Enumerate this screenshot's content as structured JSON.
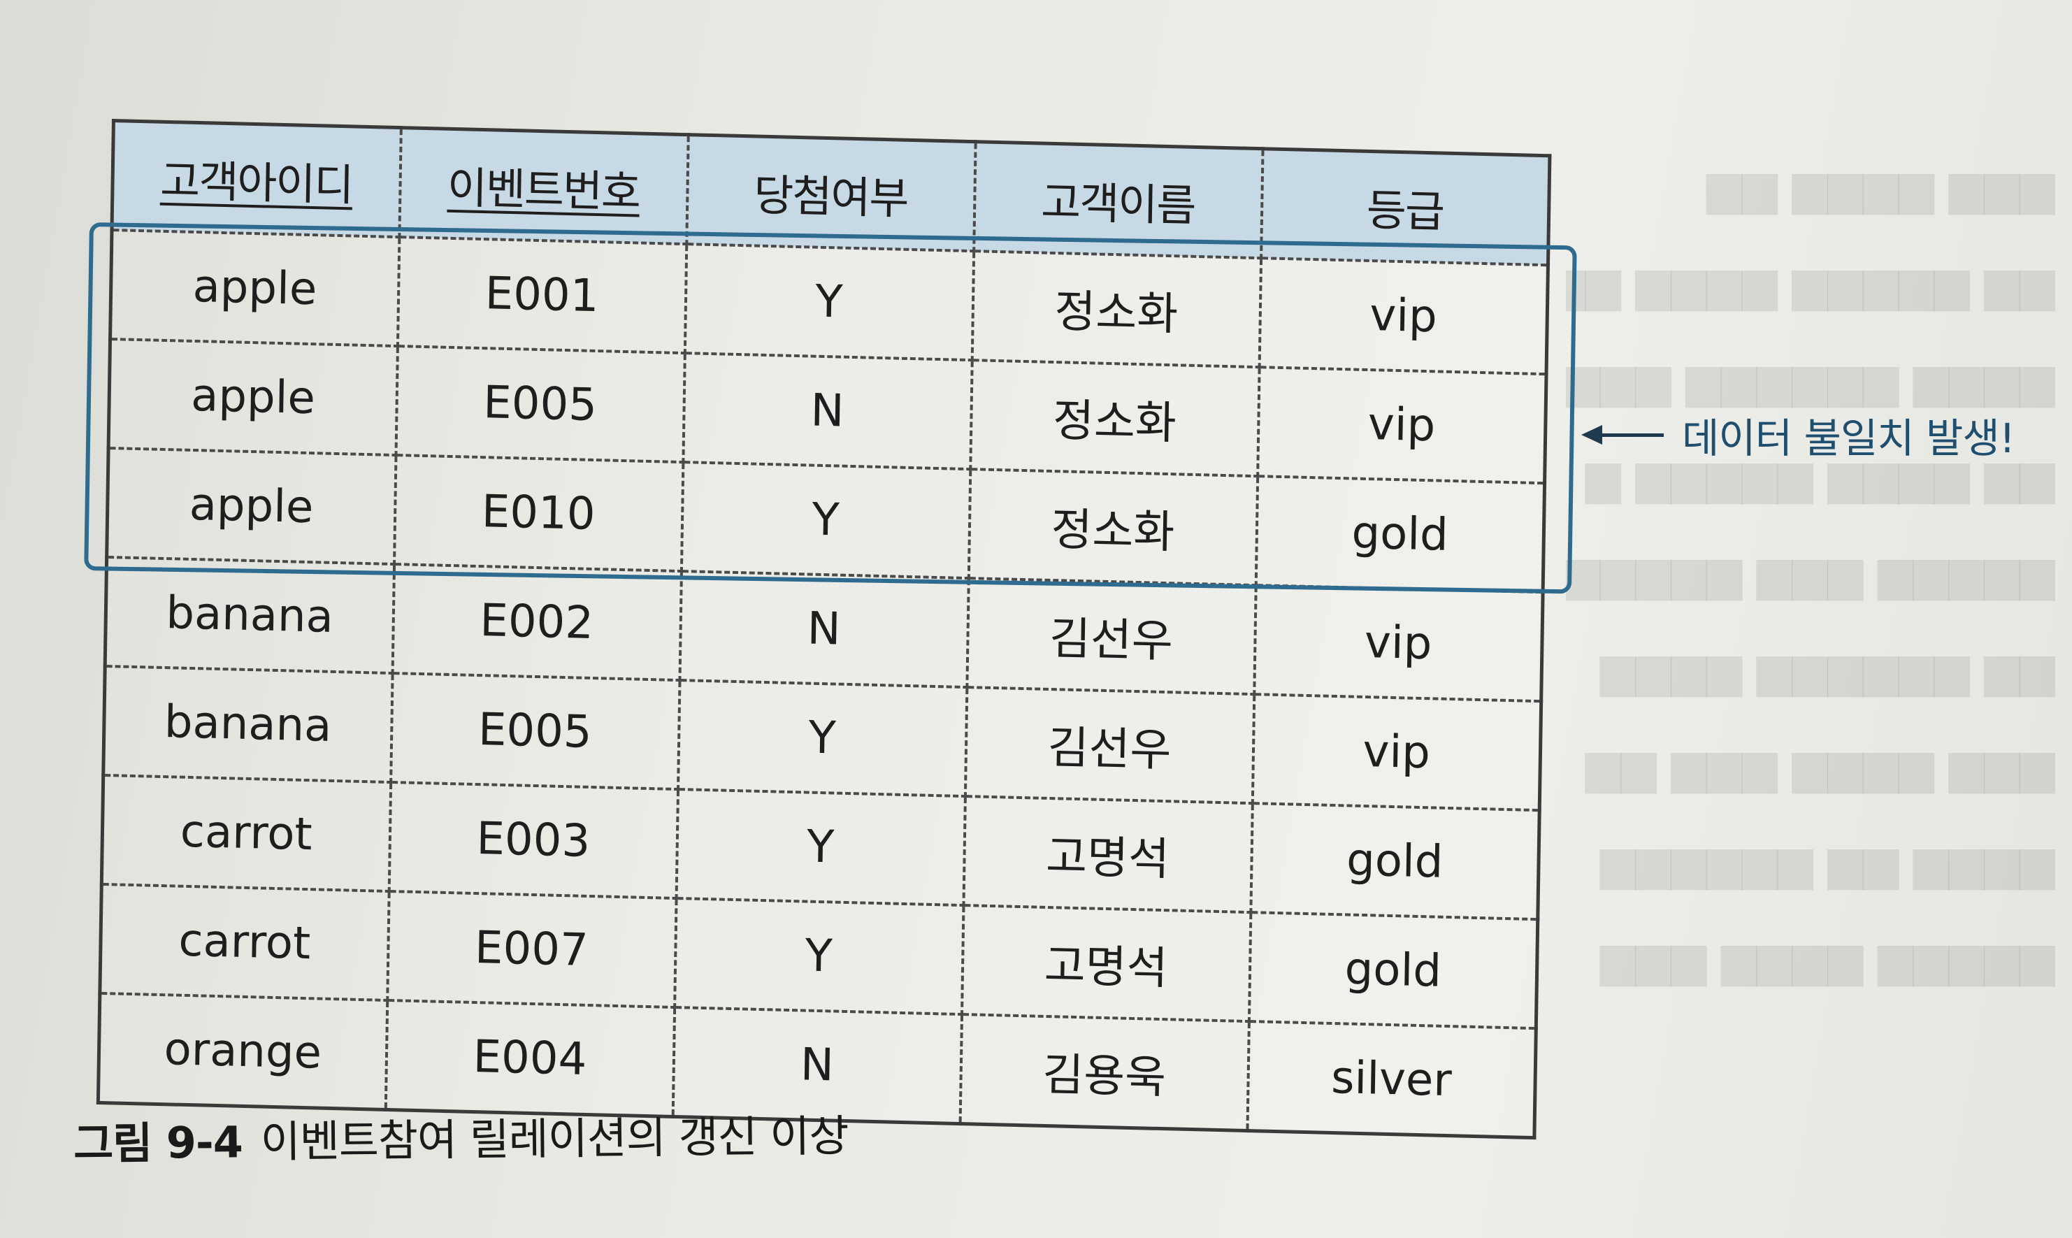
{
  "table": {
    "columns": [
      {
        "label": "고객아이디",
        "key": true
      },
      {
        "label": "이벤트번호",
        "key": true
      },
      {
        "label": "당첨여부",
        "key": false
      },
      {
        "label": "고객이름",
        "key": false
      },
      {
        "label": "등급",
        "key": false
      }
    ],
    "rows": [
      [
        "apple",
        "E001",
        "Y",
        "정소화",
        "vip"
      ],
      [
        "apple",
        "E005",
        "N",
        "정소화",
        "vip"
      ],
      [
        "apple",
        "E010",
        "Y",
        "정소화",
        "gold"
      ],
      [
        "banana",
        "E002",
        "N",
        "김선우",
        "vip"
      ],
      [
        "banana",
        "E005",
        "Y",
        "김선우",
        "vip"
      ],
      [
        "carrot",
        "E003",
        "Y",
        "고명석",
        "gold"
      ],
      [
        "carrot",
        "E007",
        "Y",
        "고명석",
        "gold"
      ],
      [
        "orange",
        "E004",
        "N",
        "김용욱",
        "silver"
      ]
    ]
  },
  "annotation": {
    "text": "데이터 불일치 발생!"
  },
  "caption": {
    "number": "그림 9-4",
    "title": "이벤트참여 릴레이션의 갱신 이상"
  },
  "colors": {
    "header_fill": "#c7d9e4",
    "highlight_border": "#2e6b8e",
    "annotation_text": "#1f4e6e"
  }
}
